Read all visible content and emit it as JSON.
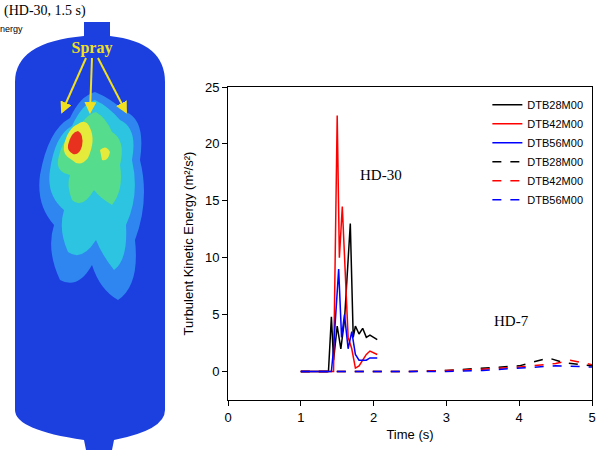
{
  "chart_data": {
    "type": "line",
    "y_label": "Turbulent Kinetic Energy (m²/s²)",
    "x_label": "Time (s)",
    "xlim": [
      0,
      5
    ],
    "xticks": [
      0,
      1,
      2,
      3,
      4,
      5
    ],
    "ylim": [
      -2.5,
      25
    ],
    "yticks": [
      0,
      5,
      10,
      15,
      20,
      25
    ],
    "grid": false,
    "legend": "top-right",
    "annotations": [
      {
        "text": "HD-30",
        "x": 2.1,
        "y": 17.3
      },
      {
        "text": "HD-7",
        "x": 3.9,
        "y": 4.4
      }
    ],
    "series": [
      {
        "name": "DTB28M00",
        "color": "#000000",
        "line_style": "solid",
        "x": [
          1.0,
          1.38,
          1.42,
          1.45,
          1.5,
          1.55,
          1.6,
          1.68,
          1.72,
          1.75,
          1.8,
          1.85,
          1.9,
          1.95,
          2.05
        ],
        "values": [
          0,
          0,
          4.8,
          1,
          4,
          2,
          4.5,
          13,
          3,
          4,
          3.3,
          3.8,
          3,
          3.2,
          2.8
        ]
      },
      {
        "name": "DTB42M00",
        "color": "#ff0000",
        "line_style": "solid",
        "x": [
          1.0,
          1.45,
          1.5,
          1.53,
          1.57,
          1.62,
          1.65,
          1.7,
          1.75,
          1.8,
          1.85,
          1.9,
          1.95,
          2.05
        ],
        "values": [
          0,
          0,
          22.5,
          10,
          14.5,
          8,
          3,
          2,
          0.3,
          0.5,
          1,
          1.5,
          1.8,
          1.5
        ]
      },
      {
        "name": "DTB56M00",
        "color": "#0000ff",
        "line_style": "solid",
        "x": [
          1.0,
          1.42,
          1.45,
          1.52,
          1.56,
          1.6,
          1.65,
          1.7,
          1.75,
          1.8,
          1.85,
          1.9,
          1.95,
          2.05
        ],
        "values": [
          0,
          0,
          2,
          9,
          3,
          5,
          2,
          3.5,
          1.5,
          1,
          1,
          1,
          1.2,
          1.2
        ]
      },
      {
        "name": "DTB28M00",
        "color": "#000000",
        "line_style": "dash",
        "x": [
          1.0,
          2.5,
          3.0,
          3.5,
          4.0,
          4.4,
          4.6,
          5.0
        ],
        "values": [
          0,
          0,
          0.1,
          0.3,
          0.5,
          1.2,
          0.8,
          0.5
        ]
      },
      {
        "name": "DTB42M00",
        "color": "#ff0000",
        "line_style": "dash",
        "x": [
          1.0,
          2.5,
          3.0,
          3.5,
          4.0,
          4.5,
          4.7,
          5.0
        ],
        "values": [
          0,
          0,
          0.1,
          0.2,
          0.4,
          0.7,
          1.0,
          0.6
        ]
      },
      {
        "name": "DTB56M00",
        "color": "#0000ff",
        "line_style": "dash",
        "x": [
          1.0,
          3.0,
          3.5,
          4.0,
          4.5,
          5.0
        ],
        "values": [
          0,
          0,
          0.1,
          0.3,
          0.5,
          0.4
        ]
      }
    ]
  },
  "figure_panel": {
    "title": "(HD-30, 1.5 s)",
    "colorbar_label": "nergy",
    "label": "Spray"
  }
}
